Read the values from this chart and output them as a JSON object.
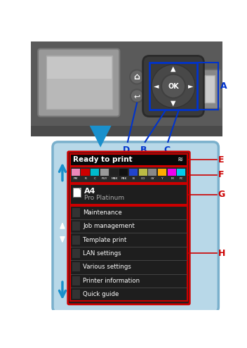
{
  "printer_top_color": "#5a5a5a",
  "printer_dark": "#444444",
  "lcd_screen_color": "#c0c0c0",
  "lcd_inner_color": "#b0b0b0",
  "nav_color": "#4a4a4a",
  "nav_dark": "#333333",
  "panel_bg": "#b8d8e8",
  "panel_border": "#7ab0cc",
  "screen_bg": "#1e1e1e",
  "title_bar_bg": "#0a0a0a",
  "title_text": "Ready to print",
  "title_color": "#ffffff",
  "red_border": "#cc0000",
  "ink_colors": [
    "#ee88bb",
    "#cc0000",
    "#00bbcc",
    "#999999",
    "#222222",
    "#111111",
    "#2244cc",
    "#bbbb44",
    "#888888",
    "#ffaa00",
    "#ee00ee",
    "#00ccee"
  ],
  "ink_labels": [
    "PM",
    "R",
    "C",
    "PGY",
    "MBK",
    "PBK",
    "B",
    "CO",
    "GY",
    "Y",
    "M",
    "PC"
  ],
  "menu_items": [
    "Maintenance",
    "Job management",
    "Template print",
    "LAN settings",
    "Various settings",
    "Printer information",
    "Quick guide"
  ],
  "label_color": "#cc0000",
  "callout_color": "#0033cc",
  "blue_color": "#1a90cc",
  "white": "#ffffff"
}
